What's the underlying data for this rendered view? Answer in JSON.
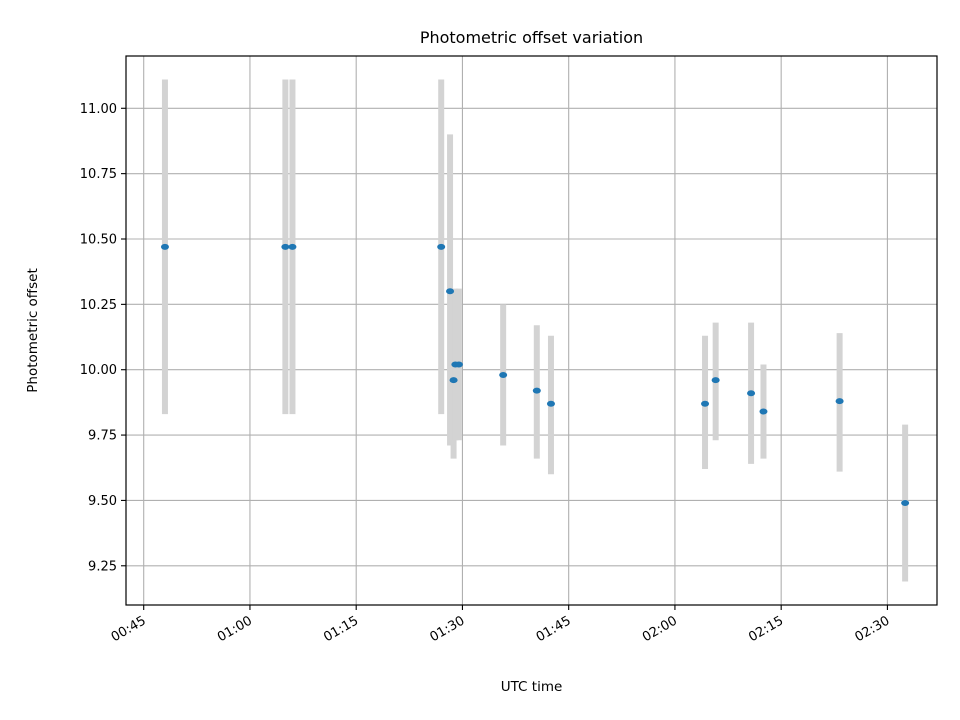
{
  "chart_data": {
    "type": "scatter",
    "title": "Photometric offset variation",
    "xlabel": "UTC time",
    "ylabel": "Photometric offset",
    "xlim": [
      "00:42:30",
      "02:37:00"
    ],
    "ylim": [
      9.1,
      11.2
    ],
    "grid": true,
    "x_ticks": [
      "00:45",
      "01:00",
      "01:15",
      "01:30",
      "01:45",
      "02:00",
      "02:15",
      "02:30"
    ],
    "y_ticks": [
      "9.25",
      "9.50",
      "9.75",
      "10.00",
      "10.25",
      "10.50",
      "10.75",
      "11.00"
    ],
    "marker_color": "#1f77b4",
    "errorbar_color": "#d3d3d3",
    "points": [
      {
        "t": "00:48:00",
        "y": 10.47,
        "lo": 9.83,
        "hi": 11.11
      },
      {
        "t": "01:05:00",
        "y": 10.47,
        "lo": 9.83,
        "hi": 11.11
      },
      {
        "t": "01:06:00",
        "y": 10.47,
        "lo": 9.83,
        "hi": 11.11
      },
      {
        "t": "01:27:00",
        "y": 10.47,
        "lo": 9.83,
        "hi": 11.11
      },
      {
        "t": "01:28:15",
        "y": 10.3,
        "lo": 9.71,
        "hi": 10.9
      },
      {
        "t": "01:28:45",
        "y": 9.96,
        "lo": 9.66,
        "hi": 10.26
      },
      {
        "t": "01:29:00",
        "y": 10.02,
        "lo": 9.73,
        "hi": 10.31
      },
      {
        "t": "01:29:30",
        "y": 10.02,
        "lo": 9.73,
        "hi": 10.31
      },
      {
        "t": "01:35:45",
        "y": 9.98,
        "lo": 9.71,
        "hi": 10.25
      },
      {
        "t": "01:40:30",
        "y": 9.92,
        "lo": 9.66,
        "hi": 10.17
      },
      {
        "t": "01:42:30",
        "y": 9.87,
        "lo": 9.6,
        "hi": 10.13
      },
      {
        "t": "02:04:15",
        "y": 9.87,
        "lo": 9.62,
        "hi": 10.13
      },
      {
        "t": "02:05:45",
        "y": 9.96,
        "lo": 9.73,
        "hi": 10.18
      },
      {
        "t": "02:10:45",
        "y": 9.91,
        "lo": 9.64,
        "hi": 10.18
      },
      {
        "t": "02:12:30",
        "y": 9.84,
        "lo": 9.66,
        "hi": 10.02
      },
      {
        "t": "02:23:15",
        "y": 9.88,
        "lo": 9.61,
        "hi": 10.14
      },
      {
        "t": "02:32:30",
        "y": 9.49,
        "lo": 9.19,
        "hi": 9.79
      }
    ]
  }
}
